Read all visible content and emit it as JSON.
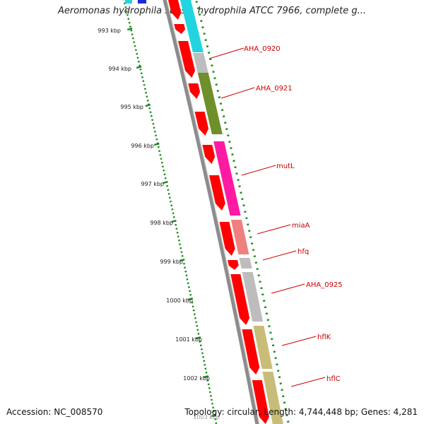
{
  "title": "Aeromonas hydrophila subsp. hydrophila ATCC 7966, complete g...",
  "footer": {
    "accession": "Accession: NC_008570",
    "summary": "Topology: circular; Length: 4,744,448 bp; Genes: 4,281"
  },
  "colors": {
    "backbone": "#8c8c8c",
    "tick": "#1a8a1a",
    "label": "#cc0000",
    "forward_strand": "#ff0000",
    "cds_cyan": "#22d4df",
    "cds_grey": "#bdbdbd",
    "cds_olive": "#6e8f2a",
    "cds_magenta": "#ff1aa3",
    "cds_salmon": "#f08080",
    "cds_khaki": "#c8bd78"
  },
  "kbp_labels": [
    "993 kbp",
    "994 kbp",
    "995 kbp",
    "996 kbp",
    "997 kbp",
    "998 kbp",
    "999 kbp",
    "1000 kbp",
    "1001 kbp",
    "1002 kbp",
    "1003 kbp"
  ],
  "gene_labels": [
    "AHA_0920",
    "AHA_0921",
    "mutL",
    "miaA",
    "hfq",
    "AHA_0925",
    "hflK",
    "hflC"
  ]
}
